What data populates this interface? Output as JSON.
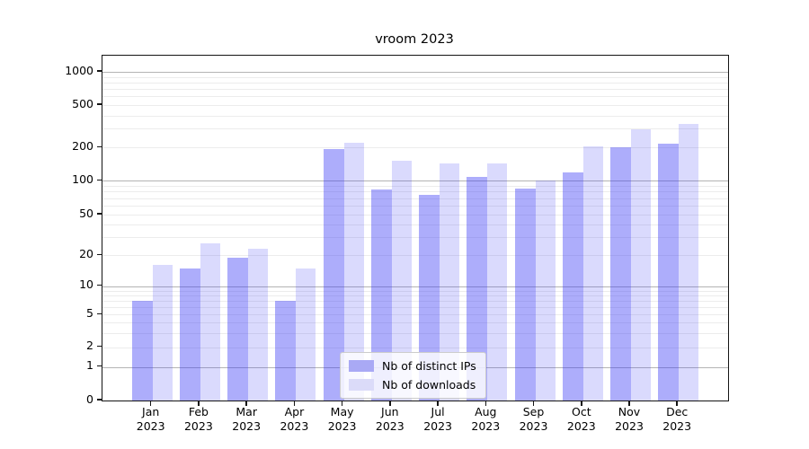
{
  "chart_data": {
    "type": "bar",
    "title": "vroom 2023",
    "categories": [
      "Jan",
      "Feb",
      "Mar",
      "Apr",
      "May",
      "Jun",
      "Jul",
      "Aug",
      "Sep",
      "Oct",
      "Nov",
      "Dec"
    ],
    "category_year": "2023",
    "xlabel": "",
    "ylabel": "",
    "y_scale": "symlog",
    "y_ticks": [
      0,
      1,
      2,
      5,
      10,
      20,
      50,
      100,
      200,
      500,
      1000
    ],
    "ylim": [
      0,
      1400
    ],
    "grid": true,
    "legend_position": "lower center",
    "series": [
      {
        "name": "Nb of distinct IPs",
        "color": "rgba(60,60,245,0.42)",
        "color_flat": "#a9a9f5",
        "values": [
          7,
          15,
          19,
          7,
          193,
          84,
          75,
          108,
          85,
          120,
          200,
          216
        ]
      },
      {
        "name": "Nb of downloads",
        "color": "rgba(60,60,245,0.19)",
        "color_flat": "#dbdbf9",
        "values": [
          16,
          26,
          23,
          15,
          220,
          153,
          144,
          144,
          100,
          206,
          295,
          335
        ]
      }
    ],
    "colors": {
      "major_grid": "#b4b4b4",
      "minor_grid": "#ececec",
      "spine": "#141414",
      "legend_border": "#cccccc"
    }
  }
}
